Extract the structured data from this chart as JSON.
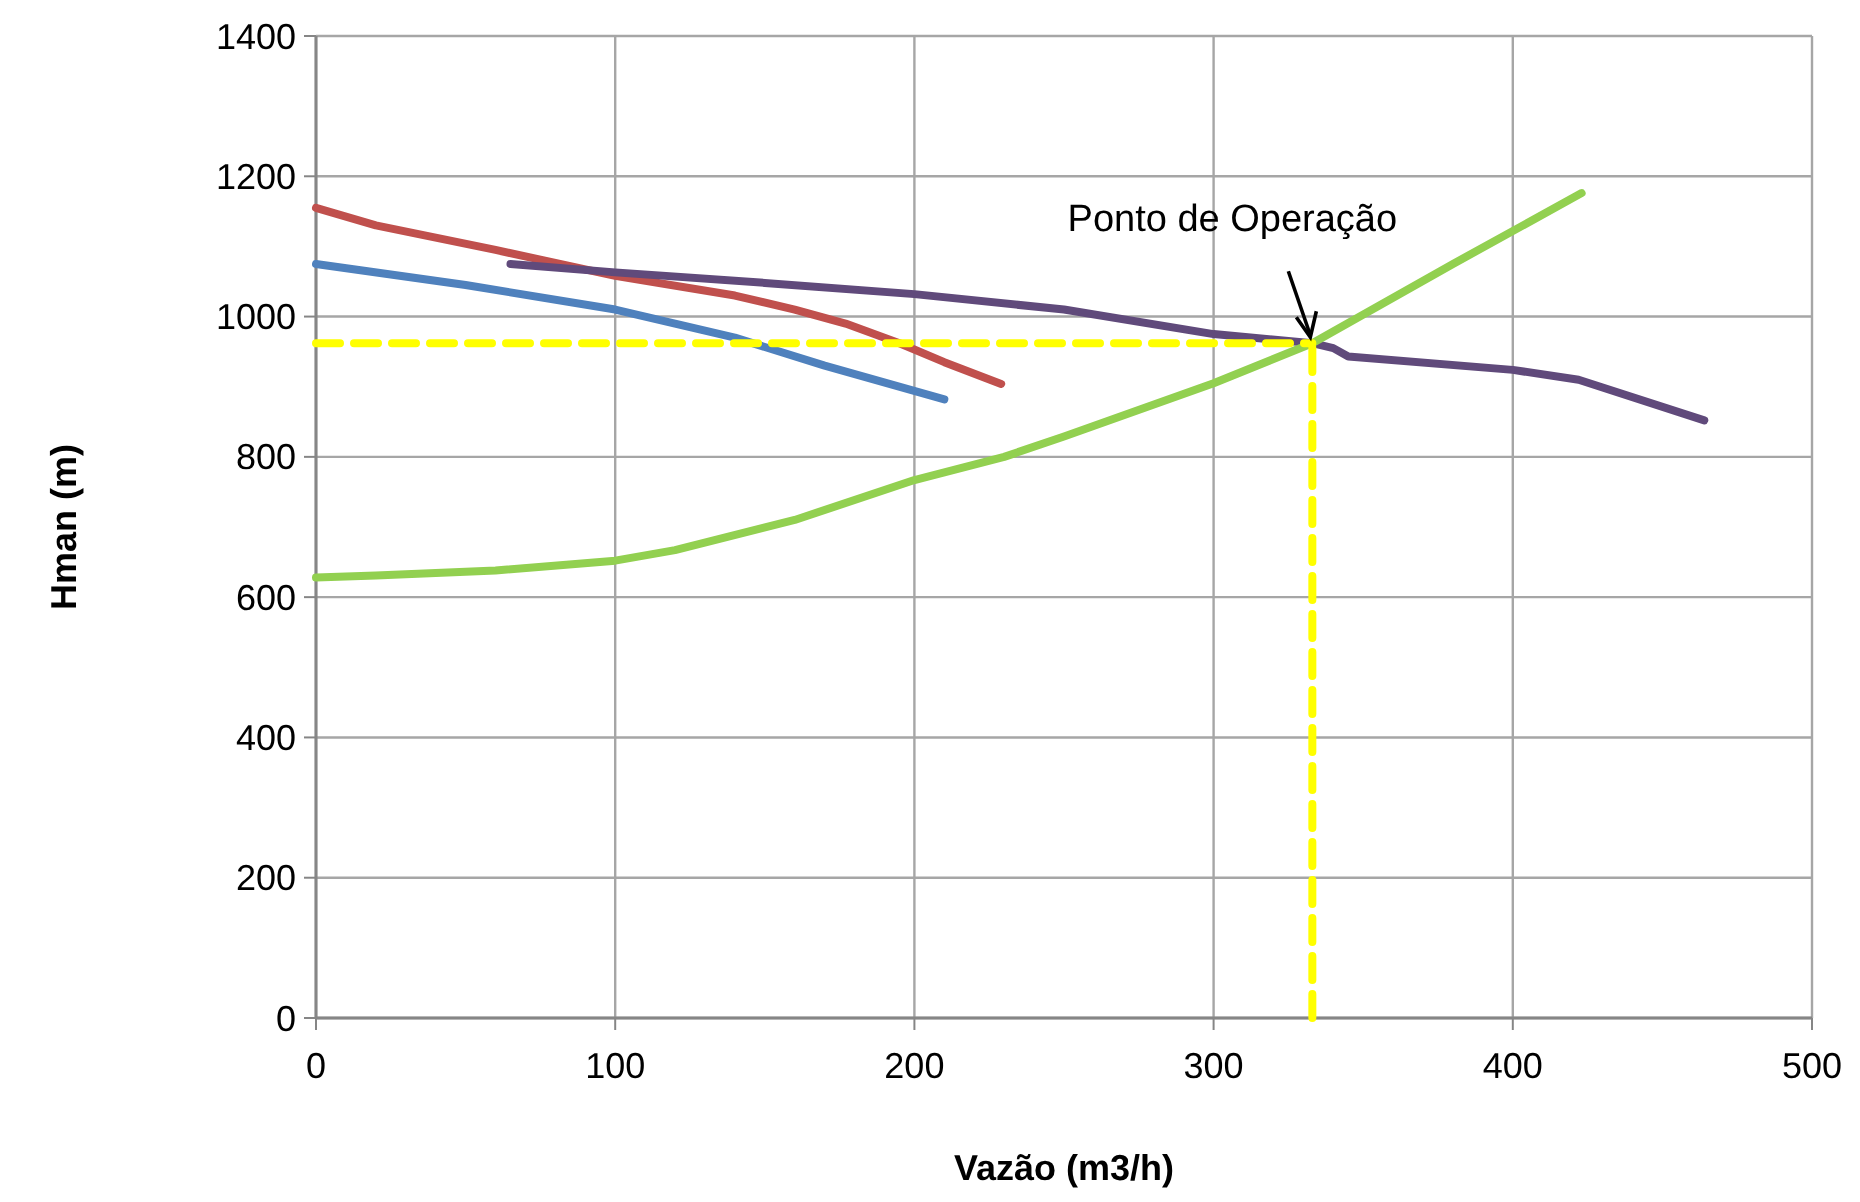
{
  "chart_data": {
    "type": "line",
    "xlabel": "Vazão (m3/h)",
    "ylabel": "Hman (m)",
    "xlim": [
      0,
      500
    ],
    "xticks": [
      0,
      100,
      200,
      300,
      400,
      500
    ],
    "ylim": [
      0,
      1400
    ],
    "yticks": [
      0,
      200,
      400,
      600,
      800,
      1000,
      1200,
      1400
    ],
    "grid": true,
    "line_style": "solid",
    "series": [
      {
        "color": "#4f81bd",
        "x": [
          0,
          50,
          100,
          120,
          140,
          170,
          210
        ],
        "values": [
          1075,
          1045,
          1010,
          990,
          970,
          930,
          882
        ]
      },
      {
        "color": "#c0504d",
        "x": [
          0,
          20,
          60,
          100,
          140,
          160,
          177,
          195,
          210,
          229
        ],
        "values": [
          1155,
          1130,
          1095,
          1058,
          1030,
          1010,
          990,
          962,
          935,
          904
        ]
      },
      {
        "color": "#604a7b",
        "x": [
          65,
          100,
          150,
          200,
          250,
          300,
          333,
          340,
          345,
          400,
          422,
          464
        ],
        "values": [
          1075,
          1063,
          1048,
          1032,
          1010,
          975,
          962,
          955,
          943,
          924,
          910,
          852
        ]
      },
      {
        "color": "#92d050",
        "x": [
          0,
          20,
          60,
          100,
          120,
          160,
          200,
          230,
          250,
          300,
          333,
          380,
          423
        ],
        "values": [
          628,
          631,
          638,
          652,
          667,
          710,
          767,
          800,
          829,
          905,
          962,
          1075,
          1176
        ]
      },
      {
        "color": "#ffff00",
        "line_style": "dashed",
        "x": [
          0,
          333
        ],
        "values": [
          962,
          962
        ]
      },
      {
        "color": "#ffff00",
        "line_style": "dashed",
        "x": [
          333,
          333
        ],
        "values": [
          0,
          962
        ]
      }
    ],
    "annotations": [
      {
        "text": "Ponto de Operação",
        "x": 333,
        "y": 962
      }
    ]
  }
}
